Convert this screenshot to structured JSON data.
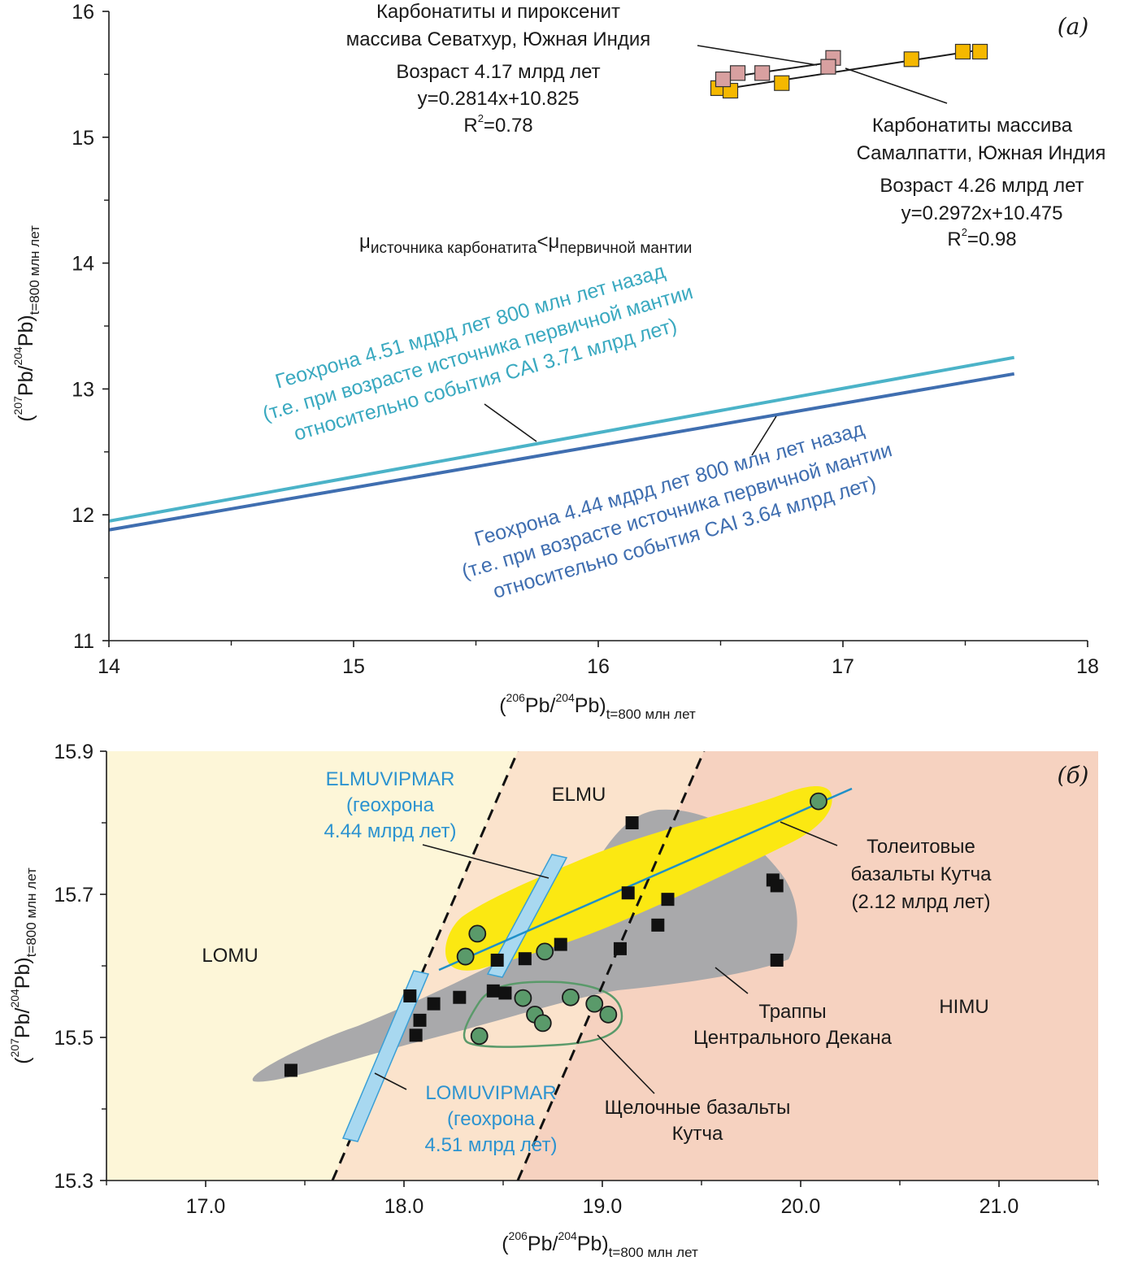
{
  "chart_data": [
    {
      "type": "scatter",
      "panel_label": "(a)",
      "xlabel": {
        "open": "(",
        "sup1": "206",
        "mid": "Pb/",
        "sup2": "204",
        "end": "Pb)",
        "sub": "t=800 млн лет"
      },
      "ylabel": {
        "open": "(",
        "sup1": "207",
        "mid": "Pb/",
        "sup2": "204",
        "end": "Pb)",
        "sub": "t=800 млн лет"
      },
      "xlim": [
        14,
        18
      ],
      "ylim": [
        11,
        16
      ],
      "xticks": [
        14,
        15,
        16,
        17,
        18
      ],
      "xtick_labels": [
        "14",
        "15",
        "16",
        "17",
        "18"
      ],
      "yticks": [
        11,
        12,
        13,
        14,
        15,
        16
      ],
      "ytick_labels": [
        "11",
        "12",
        "13",
        "14",
        "15",
        "16"
      ],
      "series": [
        {
          "name": "Карбонатиты и пироксенит массива Севатхур, Южная Индия",
          "color": "#d8a0a0",
          "points": [
            [
              16.51,
              15.46
            ],
            [
              16.57,
              15.51
            ],
            [
              16.67,
              15.51
            ],
            [
              16.96,
              15.63
            ],
            [
              16.94,
              15.56
            ]
          ],
          "fit": {
            "slope": 0.2814,
            "intercept": 10.825,
            "x_range": [
              16.5,
              16.98
            ]
          }
        },
        {
          "name": "Карбонатиты массива Самалпатти, Южная Индия",
          "color": "#f5b800",
          "points": [
            [
              16.49,
              15.39
            ],
            [
              16.54,
              15.37
            ],
            [
              16.75,
              15.43
            ],
            [
              17.28,
              15.62
            ],
            [
              17.49,
              15.68
            ],
            [
              17.56,
              15.68
            ]
          ],
          "fit": {
            "slope": 0.2972,
            "intercept": 10.475,
            "x_range": [
              16.5,
              17.58
            ]
          }
        }
      ],
      "geochrons": [
        {
          "name": "Геохрона 4.51",
          "color": "#4bb3c8",
          "points": [
            [
              14,
              11.95
            ],
            [
              17.7,
              13.25
            ]
          ]
        },
        {
          "name": "Геохрона 4.44",
          "color": "#3f6eb0",
          "points": [
            [
              14,
              11.88
            ],
            [
              17.7,
              13.12
            ]
          ]
        }
      ],
      "annotations": {
        "sevathur": [
          "Карбонатиты и пироксенит",
          "массива Севатхур, Южная Индия",
          "Возраст 4.17 млрд лет",
          "y=0.2814x+10.825"
        ],
        "sevathur_r2": {
          "r": "R",
          "sup": "2",
          "val": "=0.78"
        },
        "samalpatti": [
          "Карбонатиты массива",
          "Самалпатти, Южная Индия",
          "Возраст 4.26 млрд лет",
          "y=0.2972x+10.475"
        ],
        "samalpatti_r2": {
          "r": "R",
          "sup": "2",
          "val": "=0.98"
        },
        "mu": {
          "mu1": "μ",
          "sub1": "источника карбонатита",
          "lt": "<",
          "mu2": "μ",
          "sub2": "первичной мантии"
        },
        "geochron_451": [
          "Геохрона 4.51 мдрд лет 800 млн лет назад",
          "(т.е. при возрасте источника первичной мантии",
          "относительно события CAI 3.71 млрд лет)"
        ],
        "geochron_444": [
          "Геохрона 4.44 мдрд лет 800 млн лет назад",
          "(т.е. при возрасте источника первичной мантии",
          "относительно события CAI 3.64 млрд лет)"
        ]
      }
    },
    {
      "type": "scatter",
      "panel_label": "(б)",
      "xlabel": {
        "open": "(",
        "sup1": "206",
        "mid": "Pb/",
        "sup2": "204",
        "end": "Pb)",
        "sub": "t=800 млн лет"
      },
      "ylabel": {
        "open": "(",
        "sup1": "207",
        "mid": "Pb/",
        "sup2": "204",
        "end": "Pb)",
        "sub": "t=800 млн лет"
      },
      "xlim": [
        16.5,
        21.5
      ],
      "ylim": [
        15.3,
        15.9
      ],
      "xticks": [
        17,
        18,
        19,
        20,
        21
      ],
      "xtick_labels": [
        "17.0",
        "18.0",
        "19.0",
        "20.0",
        "21.0"
      ],
      "yticks": [
        15.3,
        15.5,
        15.7,
        15.9
      ],
      "ytick_labels": [
        "15.3",
        "15.5",
        "15.7",
        "15.9"
      ],
      "region_colors": {
        "lomu": "#fdf6d8",
        "elmu": "#fbe3cc",
        "himu": "#f6d2c0"
      },
      "series": [
        {
          "name": "Траппы Центрального Декана",
          "marker": "square",
          "color": "#111111",
          "points": [
            [
              17.43,
              15.454
            ],
            [
              18.03,
              15.558
            ],
            [
              18.06,
              15.503
            ],
            [
              18.08,
              15.524
            ],
            [
              18.15,
              15.547
            ],
            [
              18.28,
              15.556
            ],
            [
              18.45,
              15.565
            ],
            [
              18.47,
              15.608
            ],
            [
              18.51,
              15.562
            ],
            [
              18.61,
              15.61
            ],
            [
              18.79,
              15.63
            ],
            [
              19.09,
              15.624
            ],
            [
              19.13,
              15.702
            ],
            [
              19.15,
              15.8
            ],
            [
              19.28,
              15.657
            ],
            [
              19.33,
              15.693
            ],
            [
              19.86,
              15.72
            ],
            [
              19.88,
              15.712
            ],
            [
              19.88,
              15.608
            ]
          ]
        },
        {
          "name": "Толеитовые базальты Кутча",
          "marker": "circle",
          "color": "#5a9a6a",
          "points": [
            [
              18.37,
              15.645
            ],
            [
              18.31,
              15.613
            ],
            [
              18.71,
              15.62
            ],
            [
              20.09,
              15.83
            ]
          ]
        },
        {
          "name": "Щелочные базальты Кутча",
          "marker": "circle",
          "color": "#5a9a6a",
          "points": [
            [
              18.38,
              15.502
            ],
            [
              18.6,
              15.555
            ],
            [
              18.66,
              15.532
            ],
            [
              18.7,
              15.52
            ],
            [
              18.84,
              15.556
            ],
            [
              18.96,
              15.547
            ],
            [
              19.03,
              15.532
            ]
          ]
        }
      ],
      "labels": {
        "elmu": "ELMU",
        "lomu": "LOMU",
        "himu": "HIMU",
        "elmuvipmar": [
          "ELMUVIPMAR",
          "(геохрона",
          "4.44 млрд лет)"
        ],
        "lomuvipmar": [
          "LOMUVIPMAR",
          "(геохрона",
          "4.51 млрд лет)"
        ],
        "tholeiite": [
          "Толеитовые",
          "базальты Кутча",
          "(2.12 млрд лет)"
        ],
        "traps": [
          "Траппы",
          "Центрального Декана"
        ],
        "alkaline": [
          "Щелочные базальты",
          "Кутча"
        ]
      },
      "colors": {
        "band": "#a8d8f0",
        "band_edge": "#3a9fd6",
        "label_blue": "#2c93d0",
        "gray_field": "#a9a9ab",
        "yellow_field": "#fbe812",
        "fit_line": "#2090c8"
      }
    }
  ]
}
